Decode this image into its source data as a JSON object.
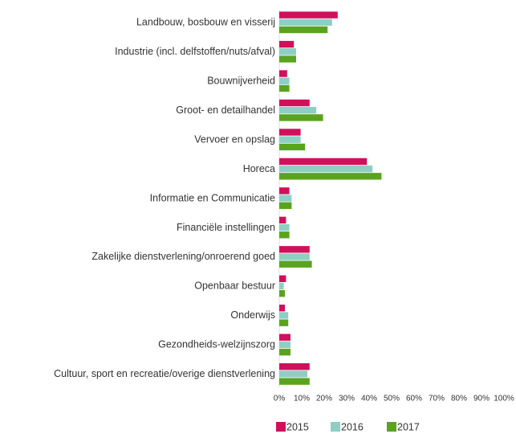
{
  "chart_data": {
    "type": "barh",
    "categories": [
      "Landbouw, bosbouw en visserij",
      "Industrie (incl. delfstoffen/nuts/afval)",
      "Bouwnijverheid",
      "Groot- en detailhandel",
      "Vervoer en opslag",
      "Horeca",
      "Informatie en Communicatie",
      "Financiële instellingen",
      "Zakelijke dienstverlening/onroerend goed",
      "Openbaar bestuur",
      "Onderwijs",
      "Gezondheids-welzijnszorg",
      "Cultuur, sport en recreatie/overige dienstverlening"
    ],
    "series": [
      {
        "name": "2015",
        "color": "#d0105a",
        "values": [
          26,
          6.5,
          3.5,
          13.5,
          9.5,
          39,
          4.5,
          3,
          13.5,
          3,
          2.5,
          5,
          13.5
        ]
      },
      {
        "name": "2016",
        "color": "#8ecfc5",
        "values": [
          23.5,
          7.5,
          4.5,
          16.5,
          9.5,
          41.5,
          5.5,
          4.5,
          13.5,
          2,
          4,
          5,
          12.5
        ]
      },
      {
        "name": "2017",
        "color": "#5aa31f",
        "values": [
          21.5,
          7.5,
          4.5,
          19.5,
          11.5,
          45.5,
          5.5,
          4.5,
          14.5,
          2.5,
          4,
          5,
          13.5
        ]
      }
    ],
    "xlim": [
      0,
      100
    ],
    "xticks": [
      {
        "value": 0,
        "label": "0%"
      },
      {
        "value": 10,
        "label": "10%"
      },
      {
        "value": 20,
        "label": "20%"
      },
      {
        "value": 30,
        "label": "30%"
      },
      {
        "value": 40,
        "label": "40%"
      },
      {
        "value": 50,
        "label": "50%"
      },
      {
        "value": 60,
        "label": "60%"
      },
      {
        "value": 70,
        "label": "70%"
      },
      {
        "value": 80,
        "label": "80%"
      },
      {
        "value": 90,
        "label": "90%"
      },
      {
        "value": 100,
        "label": "100%"
      }
    ],
    "legend": "bottom"
  }
}
